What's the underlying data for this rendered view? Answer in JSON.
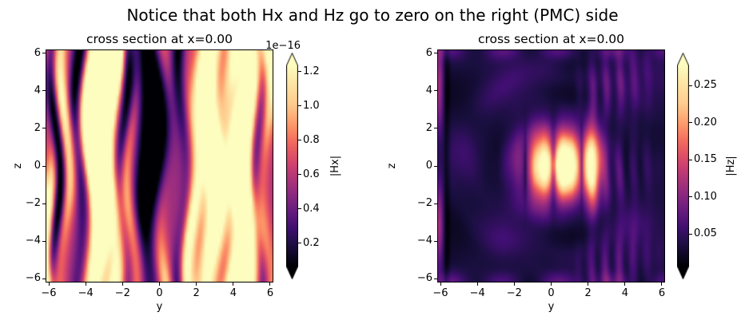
{
  "figure": {
    "suptitle": "Notice that both Hx and Hz go to zero on the right (PMC) side",
    "background": "#ffffff",
    "text_color": "#000000"
  },
  "colormap_stops": [
    [
      0.0,
      0,
      0,
      4
    ],
    [
      0.1,
      24,
      15,
      61
    ],
    [
      0.2,
      68,
      15,
      118
    ],
    [
      0.3,
      114,
      31,
      129
    ],
    [
      0.4,
      158,
      47,
      127
    ],
    [
      0.5,
      205,
      64,
      113
    ],
    [
      0.6,
      240,
      96,
      93
    ],
    [
      0.7,
      253,
      150,
      104
    ],
    [
      0.8,
      254,
      202,
      141
    ],
    [
      0.9,
      254,
      227,
      161
    ],
    [
      1.0,
      252,
      253,
      191
    ]
  ],
  "chart_data": [
    {
      "type": "heatmap",
      "field": "Hx",
      "title": "cross section at x=0.00",
      "xlabel": "y",
      "ylabel": "z",
      "xlim": [
        -6.13,
        6.13
      ],
      "ylim": [
        -6.15,
        6.15
      ],
      "xtick_values": [
        -6,
        -4,
        -2,
        0,
        2,
        4,
        6
      ],
      "xtick_labels": [
        "−6",
        "−4",
        "−2",
        "0",
        "2",
        "4",
        "6"
      ],
      "ytick_values": [
        6,
        4,
        2,
        0,
        -2,
        -4,
        -6
      ],
      "ytick_labels": [
        "6",
        "4",
        "2",
        "0",
        "−2",
        "−4",
        "−6"
      ],
      "colormap": "magma",
      "value_scale_note": "values are x 1e-16 (numerical zero)",
      "colorbar": {
        "label": "|Hx|",
        "offset_text": "1e−16",
        "tick_values": [
          1.2,
          1.0,
          0.8,
          0.6,
          0.4,
          0.2
        ],
        "tick_labels": [
          "1.2",
          "1.0",
          "0.8",
          "0.6",
          "0.4",
          "0.2"
        ],
        "vmin": 0.065,
        "vmax": 1.237,
        "extend": "both"
      },
      "description": "wiggly vertical interference stripes (machine-precision noise)",
      "synthesis": {
        "kind": "stripes",
        "base": 0.42,
        "drift_amp": 0.3,
        "drift_freq": 0.55,
        "drift_phase_scale": 0.9,
        "amp_freq": 0.33,
        "bright": [
          [
            -6.0,
            0.3,
            0.55,
            0.85,
            3.4
          ],
          [
            -5.15,
            0.3,
            0.42,
            0.55,
            0.6
          ],
          [
            -3.5,
            0.45,
            0.95,
            0.35,
            1.3
          ],
          [
            -2.55,
            0.33,
            0.85,
            0.45,
            -0.7
          ],
          [
            -1.5,
            0.28,
            0.3,
            0.6,
            2.4
          ],
          [
            0.3,
            0.3,
            0.34,
            0.7,
            -2.1
          ],
          [
            1.75,
            0.3,
            0.4,
            0.8,
            2.9
          ],
          [
            2.8,
            0.42,
            0.92,
            0.4,
            1.1
          ],
          [
            3.95,
            0.33,
            0.62,
            0.7,
            -1.8
          ],
          [
            4.75,
            0.42,
            0.92,
            0.55,
            1.5
          ],
          [
            5.75,
            0.3,
            0.48,
            0.6,
            -0.5
          ]
        ],
        "dark": [
          [
            -5.62,
            0.22,
            0.5,
            0.5,
            1.5
          ],
          [
            -4.3,
            0.3,
            0.48,
            0.4,
            0.3
          ],
          [
            -0.5,
            0.6,
            0.52,
            0.5,
            1.0
          ],
          [
            -1.95,
            0.25,
            0.32,
            0.5,
            0.4
          ],
          [
            1.25,
            0.25,
            0.36,
            0.5,
            -1.4
          ],
          [
            5.35,
            0.28,
            0.42,
            0.5,
            2.0
          ]
        ]
      }
    },
    {
      "type": "heatmap",
      "field": "Hz",
      "title": "cross section at x=0.00",
      "xlabel": "y",
      "ylabel": "z",
      "xlim": [
        -6.13,
        6.13
      ],
      "ylim": [
        -6.15,
        6.15
      ],
      "xtick_values": [
        -6,
        -4,
        -2,
        0,
        2,
        4,
        6
      ],
      "xtick_labels": [
        "−6",
        "−4",
        "−2",
        "0",
        "2",
        "4",
        "6"
      ],
      "ytick_values": [
        6,
        4,
        2,
        0,
        -2,
        -4,
        -6
      ],
      "ytick_labels": [
        "6",
        "4",
        "2",
        "0",
        "−2",
        "−4",
        "−6"
      ],
      "colormap": "magma",
      "colorbar": {
        "label": "|Hz|",
        "offset_text": "",
        "tick_values": [
          0.25,
          0.2,
          0.15,
          0.1,
          0.05
        ],
        "tick_labels": [
          "0.25",
          "0.20",
          "0.15",
          "0.10",
          "0.05"
        ],
        "vmin": 0.006,
        "vmax": 0.277,
        "extend": "both"
      },
      "description": "bright central double lobe near y=0..1, z=0 with concentric ripples; field decays to zero at right (PMC) edge y=6",
      "synthesis": {
        "kind": "dipole",
        "base": 0.1,
        "base_mod": 0.05,
        "y0": 0.35,
        "core_amp": 1.3,
        "core_sigma": 1.7,
        "slit_freq": 2.05,
        "slit_x0": 0.12,
        "slit_pow": 0.65,
        "slit_floor": 0.08,
        "crescent_amp": 0.5,
        "crescent_x": 2.2,
        "crescent_w": 0.42,
        "crescent_h": 2.3,
        "arc_amp": 0.15,
        "arc_freq": 2.35,
        "arc_phase": 0.7,
        "arc_decay": 5.0,
        "stripe_amp": 0.17,
        "stripe_freq": 8.2,
        "edge_amp": 0.34,
        "edge_dark": 0.1,
        "rim_amp": 0.14
      }
    }
  ]
}
